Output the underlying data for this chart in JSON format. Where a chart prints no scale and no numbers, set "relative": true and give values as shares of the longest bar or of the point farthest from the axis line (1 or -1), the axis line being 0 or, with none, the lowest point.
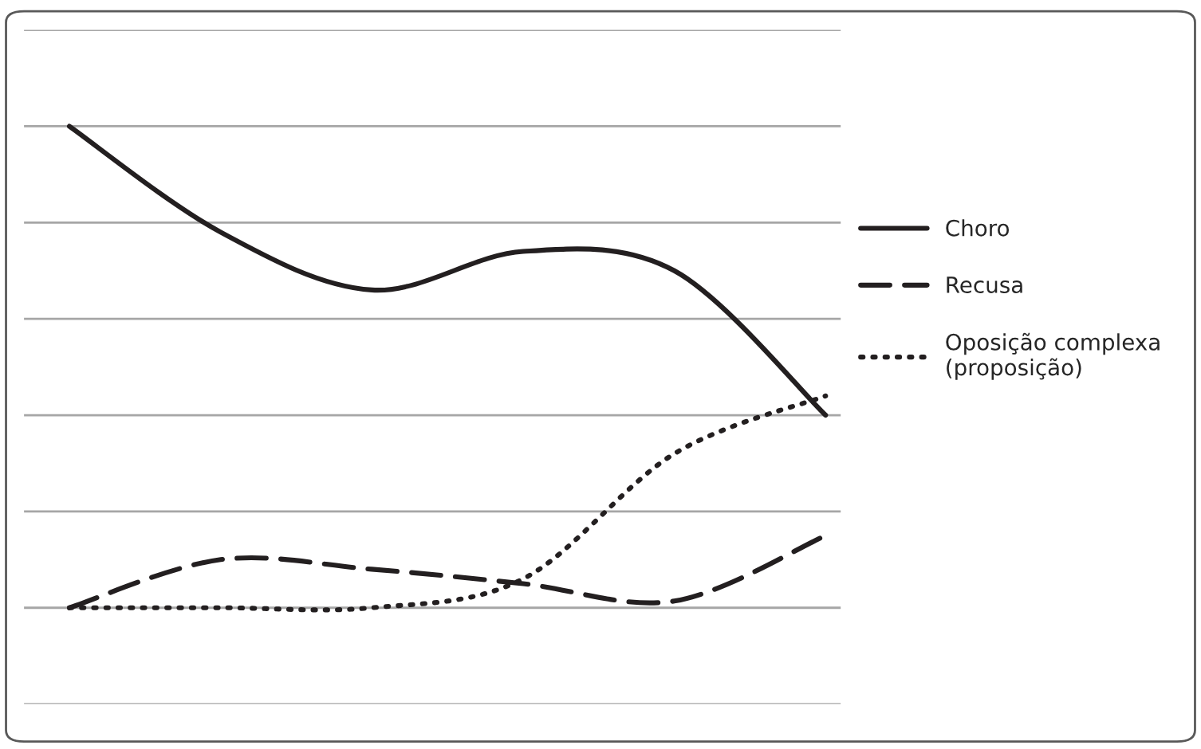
{
  "chart_data": {
    "type": "line",
    "relative": true,
    "categories": [
      null,
      null,
      null,
      null,
      null,
      null
    ],
    "grid": "y",
    "legend": "right",
    "marker": "none",
    "series": [
      {
        "name": "Choro",
        "color": "#231f20",
        "line_style": "solid",
        "values": [
          1.0,
          0.78,
          0.66,
          0.74,
          0.7,
          0.4
        ]
      },
      {
        "name": "Recusa",
        "color": "#231f20",
        "line_style": "dashed",
        "values": [
          0.0,
          0.1,
          0.08,
          0.05,
          0.014,
          0.15
        ]
      },
      {
        "name": "Oposição complexa\n(proposição)",
        "color": "#231f20",
        "line_style": "dotted",
        "values": [
          0.0,
          0.0,
          0.0,
          0.06,
          0.32,
          0.44
        ]
      }
    ]
  }
}
